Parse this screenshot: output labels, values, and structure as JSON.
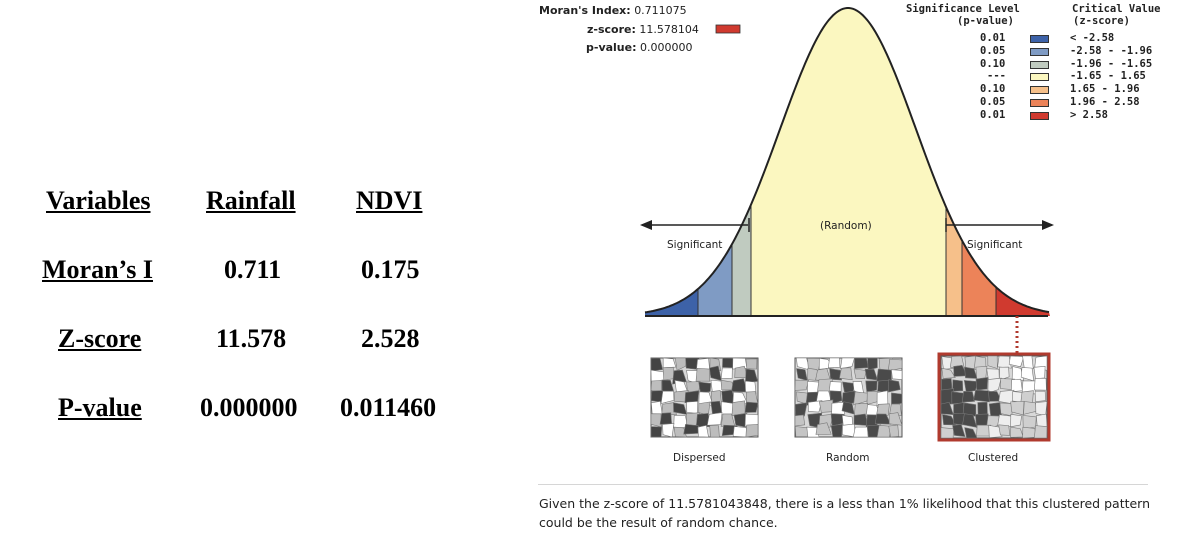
{
  "table": {
    "headers": [
      "Variables",
      "Rainfall",
      "NDVI"
    ],
    "rows": [
      {
        "label": "Moran’s I",
        "rainfall": "0.711",
        "ndvi": "0.175"
      },
      {
        "label": "Z-score",
        "rainfall": "11.578",
        "ndvi": "2.528"
      },
      {
        "label": "P-value",
        "rainfall": "0.000000",
        "ndvi": "0.011460"
      }
    ]
  },
  "figure": {
    "stats": {
      "morans_label": "Moran's Index:",
      "morans_value": "0.711075",
      "z_label": "z-score:",
      "z_value": "11.578104",
      "p_label": "p-value:",
      "p_value": "0.000000"
    },
    "legend": {
      "sig_title1": "Significance Level",
      "sig_title2": "(p-value)",
      "crit_title1": "Critical Value",
      "crit_title2": "(z-score)",
      "rows": [
        {
          "p": "0.01",
          "z": "< -2.58",
          "color": "#3d62a8"
        },
        {
          "p": "0.05",
          "z": "-2.58 - -1.96",
          "color": "#7f9bc4"
        },
        {
          "p": "0.10",
          "z": "-1.96 - -1.65",
          "color": "#c0cbc0"
        },
        {
          "p": "---",
          "z": "-1.65 - 1.65",
          "color": "#fbf7c0"
        },
        {
          "p": "0.10",
          "z": "1.65 - 1.96",
          "color": "#f6c08a"
        },
        {
          "p": "0.05",
          "z": "1.96 - 2.58",
          "color": "#ec8359"
        },
        {
          "p": "0.01",
          "z": "> 2.58",
          "color": "#d03a2f"
        }
      ]
    },
    "curve_labels": {
      "random": "(Random)",
      "significant_left": "Significant",
      "significant_right": "Significant"
    },
    "maps": [
      {
        "label": "Dispersed"
      },
      {
        "label": "Random"
      },
      {
        "label": "Clustered"
      }
    ],
    "caption": "Given the z-score of 11.5781043848, there is a less than 1% likelihood that this clustered pattern could be the result of random chance."
  }
}
